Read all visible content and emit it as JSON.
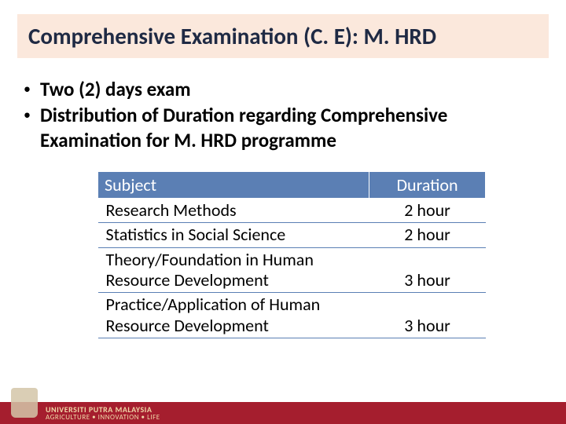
{
  "title": "Comprehensive Examination (C. E): M. HRD",
  "bullets": [
    "Two (2) days exam",
    "Distribution of Duration regarding Comprehensive Examination for M. HRD programme"
  ],
  "table": {
    "columns": [
      "Subject",
      "Duration"
    ],
    "rows": [
      [
        "Research Methods",
        "2 hour"
      ],
      [
        "Statistics in Social Science",
        "2 hour"
      ],
      [
        "Theory/Foundation in Human Resource Development",
        "3 hour"
      ],
      [
        "Practice/Application of Human Resource Development",
        "3 hour"
      ]
    ]
  },
  "footer": {
    "university": "UNIVERSITI PUTRA MALAYSIA",
    "tagline": "AGRICULTURE • INNOVATION • LIFE"
  },
  "colors": {
    "title_bg": "#fbe8dc",
    "title_text": "#1f2a44",
    "table_header_bg": "#5b7fb4",
    "table_header_text": "#ffffff",
    "footer_bg": "#a51e2e",
    "footer_text": "#f0d8a8"
  }
}
